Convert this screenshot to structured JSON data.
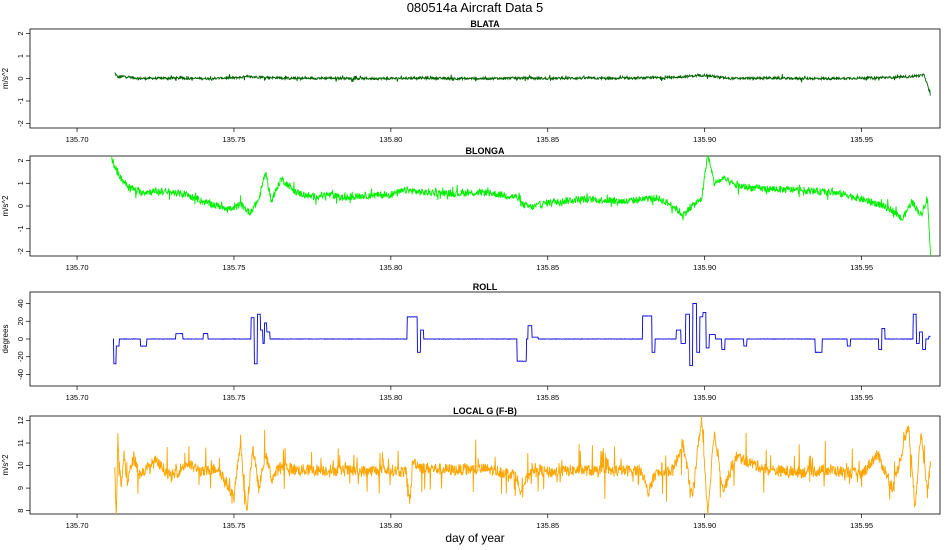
{
  "figure": {
    "title": "080514a   Aircraft Data 5",
    "xlabel": "day of year"
  },
  "chart_data": [
    {
      "type": "line",
      "title": "BLATA",
      "ylabel": "m/s^2",
      "color": "#006400",
      "xlim": [
        135.685,
        135.975
      ],
      "ylim": [
        -2.2,
        2.2
      ],
      "x_ticks": [
        "135.70",
        "135.75",
        "135.80",
        "135.85",
        "135.90",
        "135.95"
      ],
      "x_tick_values": [
        135.7,
        135.75,
        135.8,
        135.85,
        135.9,
        135.95
      ],
      "y_ticks": [
        "-2",
        "-1",
        "0",
        "1",
        "2"
      ],
      "y_tick_values": [
        -2,
        -1,
        0,
        1,
        2
      ],
      "series": [
        {
          "x": [
            135.712,
            135.713,
            135.715,
            135.72,
            135.73,
            135.74,
            135.75,
            135.755,
            135.76,
            135.77,
            135.78,
            135.79,
            135.8,
            135.81,
            135.82,
            135.83,
            135.84,
            135.85,
            135.86,
            135.87,
            135.88,
            135.89,
            135.895,
            135.9,
            135.905,
            135.91,
            135.92,
            135.93,
            135.94,
            135.95,
            135.96,
            135.965,
            135.97,
            135.972
          ],
          "y": [
            0.25,
            0.05,
            0.1,
            0.0,
            0.02,
            0.0,
            0.03,
            0.08,
            0.05,
            0.0,
            0.02,
            0.0,
            0.0,
            0.02,
            0.0,
            0.0,
            0.02,
            0.0,
            0.02,
            0.0,
            0.02,
            0.05,
            0.1,
            0.15,
            0.05,
            0.0,
            0.02,
            0.0,
            0.0,
            0.02,
            0.05,
            0.08,
            0.15,
            -0.75
          ]
        }
      ]
    },
    {
      "type": "line",
      "title": "BLONGA",
      "ylabel": "m/s^2",
      "color": "#00ee00",
      "xlim": [
        135.685,
        135.975
      ],
      "ylim": [
        -2.2,
        2.2
      ],
      "x_ticks": [
        "135.70",
        "135.75",
        "135.80",
        "135.85",
        "135.90",
        "135.95"
      ],
      "x_tick_values": [
        135.7,
        135.75,
        135.8,
        135.85,
        135.9,
        135.95
      ],
      "y_ticks": [
        "-2",
        "-1",
        "0",
        "1",
        "2"
      ],
      "y_tick_values": [
        -2,
        -1,
        0,
        1,
        2
      ],
      "series": [
        {
          "x": [
            135.711,
            135.713,
            135.716,
            135.72,
            135.725,
            135.73,
            135.735,
            135.74,
            135.745,
            135.75,
            135.752,
            135.755,
            135.758,
            135.76,
            135.762,
            135.765,
            135.77,
            135.775,
            135.78,
            135.785,
            135.79,
            135.8,
            135.805,
            135.81,
            135.82,
            135.83,
            135.84,
            135.842,
            135.845,
            135.85,
            135.86,
            135.87,
            135.875,
            135.88,
            135.885,
            135.89,
            135.893,
            135.896,
            135.899,
            135.901,
            135.903,
            135.906,
            135.91,
            135.915,
            135.92,
            135.93,
            135.94,
            135.945,
            135.95,
            135.955,
            135.96,
            135.963,
            135.966,
            135.969,
            135.971,
            135.972
          ],
          "y": [
            2.1,
            1.4,
            0.9,
            0.6,
            0.65,
            0.6,
            0.5,
            0.2,
            0.0,
            -0.15,
            0.1,
            -0.3,
            0.3,
            1.5,
            0.2,
            1.2,
            0.6,
            0.4,
            0.5,
            0.35,
            0.45,
            0.5,
            0.7,
            0.6,
            0.55,
            0.6,
            0.4,
            0.05,
            -0.05,
            0.15,
            0.3,
            0.25,
            0.2,
            0.3,
            0.35,
            0.0,
            -0.4,
            0.0,
            0.3,
            2.3,
            1.0,
            1.2,
            0.9,
            0.8,
            0.75,
            0.7,
            0.6,
            0.5,
            0.3,
            0.1,
            -0.2,
            -0.6,
            0.2,
            -0.4,
            0.4,
            -2.2
          ]
        }
      ]
    },
    {
      "type": "line",
      "title": "ROLL",
      "ylabel": "degrees",
      "color": "#0000dd",
      "xlim": [
        135.685,
        135.975
      ],
      "ylim": [
        -53,
        53
      ],
      "x_ticks": [
        "135.70",
        "135.75",
        "135.80",
        "135.85",
        "135.90",
        "135.95"
      ],
      "x_tick_values": [
        135.7,
        135.75,
        135.8,
        135.85,
        135.9,
        135.95
      ],
      "y_ticks": [
        "-40",
        "-20",
        "0",
        "20",
        "40"
      ],
      "y_tick_values": [
        -40,
        -20,
        0,
        20,
        40
      ],
      "series": [
        {
          "x": [
            135.7115,
            135.712,
            135.713,
            135.714,
            135.72,
            135.7205,
            135.722,
            135.7225,
            135.73,
            135.733,
            135.7335,
            135.734,
            135.7345,
            135.74,
            135.7405,
            135.7415,
            135.742,
            135.755,
            135.756,
            135.757,
            135.758,
            135.759,
            135.7595,
            135.76,
            135.761,
            135.762,
            135.78,
            135.8,
            135.805,
            135.8055,
            135.808,
            135.809,
            135.81,
            135.811,
            135.815,
            135.84,
            135.8405,
            135.843,
            135.8435,
            135.844,
            135.846,
            135.848,
            135.87,
            135.88,
            135.8805,
            135.883,
            135.8835,
            135.885,
            135.89,
            135.892,
            135.893,
            135.895,
            135.8955,
            135.897,
            135.898,
            135.899,
            135.9,
            135.901,
            135.902,
            135.905,
            135.906,
            135.907,
            135.912,
            135.913,
            135.914,
            135.935,
            135.9355,
            135.937,
            135.938,
            135.945,
            135.946,
            135.947,
            135.955,
            135.956,
            135.957,
            135.958,
            135.966,
            135.967,
            135.968,
            135.969,
            135.97,
            135.971,
            135.972
          ],
          "y": [
            0,
            -28,
            -8,
            0,
            0,
            -8,
            -8,
            0,
            0,
            6,
            6,
            0,
            0,
            0,
            6,
            6,
            0,
            0,
            24,
            -28,
            28,
            10,
            -5,
            18,
            8,
            0,
            0,
            0,
            0,
            25,
            25,
            -15,
            10,
            0,
            0,
            0,
            -25,
            -25,
            0,
            15,
            2,
            0,
            0,
            0,
            26,
            26,
            -15,
            0,
            0,
            10,
            -5,
            28,
            -30,
            40,
            -15,
            25,
            30,
            -10,
            5,
            0,
            -12,
            0,
            0,
            -8,
            0,
            0,
            -15,
            -15,
            0,
            0,
            -8,
            0,
            0,
            -12,
            12,
            0,
            0,
            28,
            -5,
            8,
            -12,
            0,
            3
          ]
        }
      ]
    },
    {
      "type": "line",
      "title": "LOCAL G (F-B)",
      "ylabel": "m/s^2",
      "color": "#ffa500",
      "xlim": [
        135.685,
        135.975
      ],
      "ylim": [
        7.85,
        12.2
      ],
      "x_ticks": [
        "135.70",
        "135.75",
        "135.80",
        "135.85",
        "135.90",
        "135.95"
      ],
      "x_tick_values": [
        135.7,
        135.75,
        135.8,
        135.85,
        135.9,
        135.95
      ],
      "y_ticks": [
        "8",
        "9",
        "10",
        "11",
        "12"
      ],
      "y_tick_values": [
        8,
        9,
        10,
        11,
        12
      ],
      "series": [
        {
          "x": [
            135.712,
            135.7125,
            135.713,
            135.714,
            135.715,
            135.716,
            135.718,
            135.72,
            135.725,
            135.73,
            135.735,
            135.74,
            135.745,
            135.75,
            135.752,
            135.754,
            135.756,
            135.758,
            135.76,
            135.762,
            135.765,
            135.77,
            135.78,
            135.79,
            135.8,
            135.805,
            135.806,
            135.807,
            135.81,
            135.82,
            135.83,
            135.84,
            135.841,
            135.843,
            135.845,
            135.85,
            135.86,
            135.87,
            135.88,
            135.882,
            135.884,
            135.89,
            135.893,
            135.896,
            135.899,
            135.901,
            135.903,
            135.906,
            135.91,
            135.92,
            135.93,
            135.94,
            135.95,
            135.955,
            135.96,
            135.965,
            135.967,
            135.969,
            135.971,
            135.972
          ],
          "y": [
            9.8,
            7.9,
            11.2,
            9.0,
            10.5,
            9.2,
            10.4,
            9.6,
            10.2,
            9.5,
            10.1,
            9.7,
            9.9,
            8.6,
            11.0,
            7.9,
            10.8,
            8.9,
            10.6,
            9.4,
            10.0,
            9.8,
            9.8,
            9.75,
            9.8,
            9.7,
            8.3,
            10.2,
            9.9,
            9.8,
            9.85,
            9.6,
            8.9,
            9.3,
            9.9,
            9.7,
            9.8,
            9.75,
            9.8,
            8.7,
            9.6,
            9.8,
            11.0,
            8.6,
            12.1,
            7.9,
            11.5,
            8.9,
            10.4,
            9.8,
            9.7,
            9.8,
            9.6,
            10.5,
            9.0,
            11.8,
            8.2,
            11.5,
            8.8,
            10.2
          ]
        }
      ]
    }
  ]
}
